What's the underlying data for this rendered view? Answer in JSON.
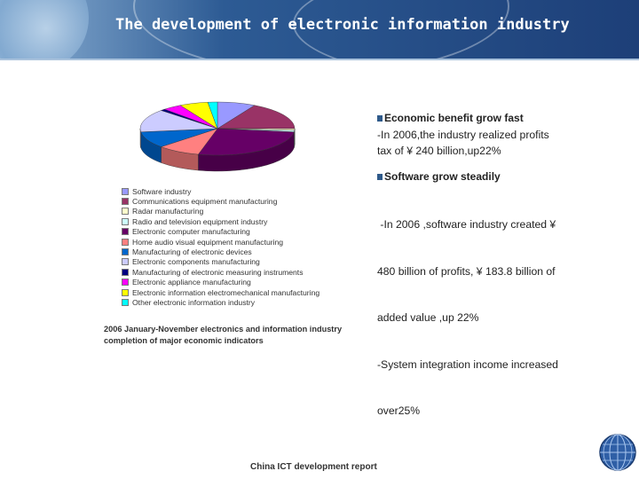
{
  "header": {
    "title": "The development of electronic information industry"
  },
  "chart_data": {
    "type": "pie",
    "categories": [
      "Software industry",
      "Communications equipment manufacturing",
      "Radar manufacturing",
      "Radio and television equipment industry",
      "Electronic computer manufacturing",
      "Home audio visual equipment manufacturing",
      "Manufacturing of electronic devices",
      "Electronic components manufacturing",
      "Manufacturing of electronic measuring instruments",
      "Electronic appliance manufacturing",
      "Electronic information electromechanical manufacturing",
      "Other electronic information industry"
    ],
    "values": [
      8,
      17,
      1,
      1,
      27,
      9,
      10,
      14,
      1,
      4,
      6,
      2
    ],
    "colors": [
      "#9999ff",
      "#993366",
      "#ffffcc",
      "#ccffff",
      "#660066",
      "#ff8080",
      "#0066cc",
      "#ccccff",
      "#000080",
      "#ff00ff",
      "#ffff00",
      "#00ffff"
    ],
    "legend_position": "below"
  },
  "caption": "2006 January-November electronics and information industry completion of major economic indicators",
  "sections": [
    {
      "heading": "Economic benefit grow fast",
      "lines": [
        "-In 2006,the industry realized profits",
        "tax of ¥ 240 billion,up22%"
      ]
    },
    {
      "heading": "Software grow steadily",
      "lines": [
        " -In 2006 ,software industry created ¥",
        "480 billion of profits, ¥ 183.8 billion of",
        "added value ,up 22%",
        "-System integration income increased",
        "over25%"
      ]
    }
  ],
  "footer": {
    "text": "China ICT development report"
  }
}
